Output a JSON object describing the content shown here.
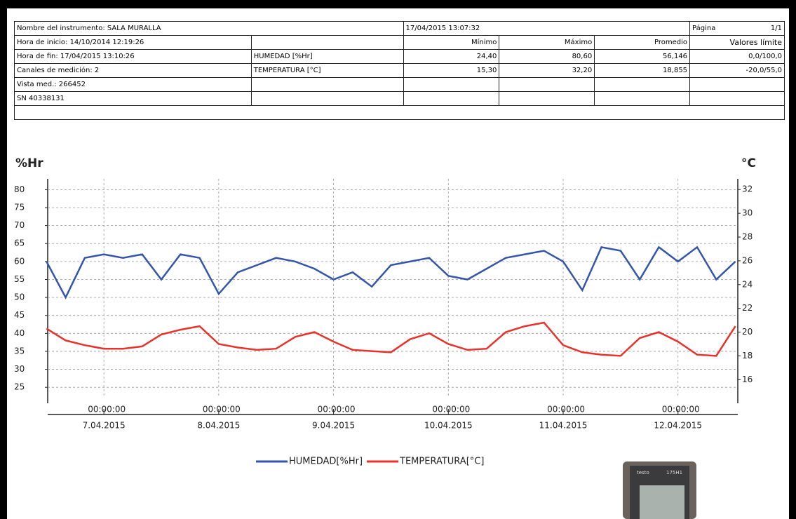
{
  "table": {
    "rows": [
      [
        "Nombre del instrumento: SALA MURALLA",
        "17/04/2015 13:07:32",
        "Página",
        "1/1"
      ],
      [
        "Hora de inicio: 14/10/2014 12:19:26",
        "Mínimo",
        "Máximo",
        "Promedio",
        "Valores límite"
      ],
      [
        "Hora de fin: 17/04/2015 13:10:26",
        "HUMEDAD [%Hr]",
        "24,40",
        "80,60",
        "56,146",
        "0,0/100,0"
      ],
      [
        "Canales de medición: 2",
        "TEMPERATURA [°C]",
        "15,30",
        "32,20",
        "18,855",
        "-20,0/55,0"
      ],
      [
        "Vista med.: 266452"
      ],
      [
        "SN 40338131"
      ]
    ]
  },
  "chart_data": {
    "type": "line",
    "y_label": "%Hr",
    "y2_label": "°C",
    "x": [
      "2015-04-06T12:00",
      "2015-04-06T16:00",
      "2015-04-06T20:00",
      "2015-04-07T00:00",
      "2015-04-07T04:00",
      "2015-04-07T08:00",
      "2015-04-07T12:00",
      "2015-04-07T16:00",
      "2015-04-07T20:00",
      "2015-04-08T00:00",
      "2015-04-08T04:00",
      "2015-04-08T08:00",
      "2015-04-08T12:00",
      "2015-04-08T16:00",
      "2015-04-08T20:00",
      "2015-04-09T00:00",
      "2015-04-09T04:00",
      "2015-04-09T08:00",
      "2015-04-09T12:00",
      "2015-04-09T16:00",
      "2015-04-09T20:00",
      "2015-04-10T00:00",
      "2015-04-10T04:00",
      "2015-04-10T08:00",
      "2015-04-10T12:00",
      "2015-04-10T16:00",
      "2015-04-10T20:00",
      "2015-04-11T00:00",
      "2015-04-11T04:00",
      "2015-04-11T08:00",
      "2015-04-11T12:00",
      "2015-04-11T16:00",
      "2015-04-11T20:00",
      "2015-04-12T00:00",
      "2015-04-12T04:00",
      "2015-04-12T08:00",
      "2015-04-12T12:00"
    ],
    "series": [
      {
        "name": "HUMEDAD[%Hr]",
        "color": "#3355aa",
        "axis": "y",
        "values": [
          60,
          50,
          61,
          62,
          61,
          62,
          55,
          62,
          61,
          51,
          57,
          59,
          61,
          60,
          58,
          55,
          57,
          53,
          59,
          60,
          61,
          56,
          55,
          58,
          61,
          62,
          63,
          60,
          52,
          64,
          63,
          55,
          64,
          60,
          64,
          55,
          60
        ]
      },
      {
        "name": "TEMPERATURA[°C]",
        "color": "#e8322a",
        "axis": "y2",
        "values": [
          20.3,
          19.3,
          18.9,
          18.6,
          18.6,
          18.8,
          19.8,
          20.2,
          20.5,
          19.0,
          18.7,
          18.5,
          18.6,
          19.6,
          20.0,
          19.2,
          18.5,
          18.4,
          18.3,
          19.4,
          19.9,
          19.0,
          18.5,
          18.6,
          20.0,
          20.5,
          20.8,
          18.9,
          18.3,
          18.1,
          18.0,
          19.5,
          20.0,
          19.2,
          18.1,
          18.0,
          20.5
        ]
      }
    ],
    "xlim": [
      "2015-04-06T12:15",
      "2015-04-12T12:30"
    ],
    "xticks": [
      {
        "value": "2015-04-07T00:00",
        "label": [
          "00:00:00",
          "7.04.2015"
        ]
      },
      {
        "value": "2015-04-08T00:00",
        "label": [
          "00:00:00",
          "8.04.2015"
        ]
      },
      {
        "value": "2015-04-09T00:00",
        "label": [
          "00:00:00",
          "9.04.2015"
        ]
      },
      {
        "value": "2015-04-10T00:00",
        "label": [
          "00:00:00",
          "10.04.2015"
        ]
      },
      {
        "value": "2015-04-11T00:00",
        "label": [
          "00:00:00",
          "11.04.2015"
        ]
      },
      {
        "value": "2015-04-12T00:00",
        "label": [
          "00:00:00",
          "12.04.2015"
        ]
      }
    ],
    "ylim": [
      22.5,
      83
    ],
    "yticks": [
      25,
      30,
      35,
      40,
      45,
      50,
      55,
      60,
      65,
      70,
      75,
      80
    ],
    "y2lim": [
      14.6,
      32.9
    ],
    "y2ticks": [
      16,
      18,
      20,
      22,
      24,
      26,
      28,
      30,
      32
    ],
    "grid": true,
    "legend": "bottom"
  },
  "device": {
    "brand": "testo",
    "model": "175H1"
  }
}
